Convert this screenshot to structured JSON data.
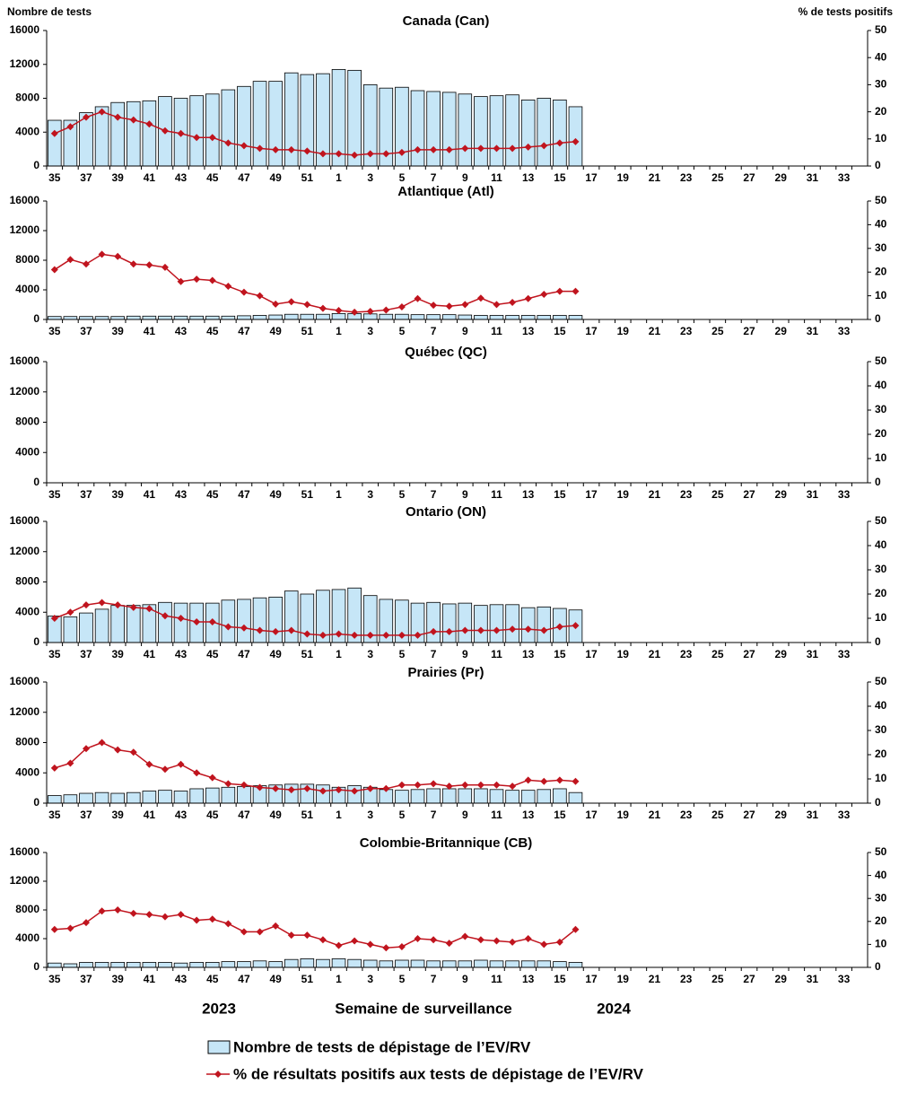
{
  "y_label": "Nombre de tests",
  "y2_label": "% de tests positifs",
  "x_label": "Semaine de surveillance",
  "years": [
    "2023",
    "2024"
  ],
  "chart_data": [
    {
      "type": "bar_line",
      "title": "Canada (Can)",
      "categories": [
        "35",
        null,
        "37",
        null,
        "39",
        null,
        "41",
        null,
        "43",
        null,
        "45",
        null,
        "47",
        null,
        "49",
        null,
        "51",
        null,
        "1",
        null,
        "3",
        null,
        "5",
        null,
        "7",
        null,
        "9",
        null,
        "11",
        null,
        "13",
        null,
        "15",
        null,
        "17",
        null,
        "19",
        null,
        "21",
        null,
        "23",
        null,
        "25",
        null,
        "27",
        null,
        "29",
        null,
        "31",
        null,
        "33",
        null
      ],
      "ylim": [
        0,
        16000
      ],
      "yticks": [
        0,
        4000,
        8000,
        12000,
        16000
      ],
      "y2lim": [
        0,
        50
      ],
      "y2ticks": [
        0,
        10,
        20,
        30,
        40,
        50
      ],
      "series": [
        {
          "name": "Nombre de tests de dépistage de l’EV/RV",
          "color": "#c6e6f7",
          "values": [
            5400,
            5400,
            6300,
            7000,
            7500,
            7600,
            7700,
            8200,
            8000,
            8300,
            8500,
            9000,
            9400,
            10000,
            10000,
            11000,
            10800,
            10900,
            11400,
            11300,
            9600,
            9200,
            9300,
            8900,
            8800,
            8700,
            8500,
            8200,
            8300,
            8400,
            7800,
            8000,
            7800,
            7000,
            null,
            null,
            null,
            null,
            null,
            null,
            null,
            null,
            null,
            null,
            null,
            null,
            null,
            null,
            null,
            null,
            null,
            null
          ]
        },
        {
          "name": "% de résultats positifs aux tests de dépistage de l’EV/RV",
          "color": "#c0141e",
          "axis": "y2",
          "values": [
            12,
            14.5,
            18,
            20,
            18,
            17,
            15.5,
            13,
            12,
            10.5,
            10.5,
            8.5,
            7.5,
            6.5,
            6,
            6,
            5.5,
            4.5,
            4.5,
            4,
            4.5,
            4.5,
            5,
            6,
            6,
            6,
            6.5,
            6.5,
            6.5,
            6.5,
            7,
            7.5,
            8.5,
            9,
            null,
            null,
            null,
            null,
            null,
            null,
            null,
            null,
            null,
            null,
            null,
            null,
            null,
            null,
            null,
            null,
            null,
            null
          ]
        }
      ]
    },
    {
      "type": "bar_line",
      "title": "Atlantique (Atl)",
      "categories": [
        "35",
        null,
        "37",
        null,
        "39",
        null,
        "41",
        null,
        "43",
        null,
        "45",
        null,
        "47",
        null,
        "49",
        null,
        "51",
        null,
        "1",
        null,
        "3",
        null,
        "5",
        null,
        "7",
        null,
        "9",
        null,
        "11",
        null,
        "13",
        null,
        "15",
        null,
        "17",
        null,
        "19",
        null,
        "21",
        null,
        "23",
        null,
        "25",
        null,
        "27",
        null,
        "29",
        null,
        "31",
        null,
        "33",
        null
      ],
      "ylim": [
        0,
        16000
      ],
      "yticks": [
        0,
        4000,
        8000,
        12000,
        16000
      ],
      "y2lim": [
        0,
        50
      ],
      "y2ticks": [
        0,
        10,
        20,
        30,
        40,
        50
      ],
      "series": [
        {
          "name": "Nombre de tests de dépistage de l’EV/RV",
          "color": "#c6e6f7",
          "values": [
            400,
            400,
            400,
            400,
            400,
            450,
            450,
            450,
            450,
            450,
            450,
            450,
            500,
            550,
            600,
            700,
            700,
            700,
            800,
            800,
            750,
            700,
            700,
            650,
            650,
            650,
            600,
            550,
            550,
            550,
            550,
            550,
            550,
            550,
            null,
            null,
            null,
            null,
            null,
            null,
            null,
            null,
            null,
            null,
            null,
            null,
            null,
            null,
            null,
            null,
            null,
            null
          ]
        },
        {
          "name": "% de résultats positifs aux tests de dépistage de l’EV/RV",
          "color": "#c0141e",
          "axis": "y2",
          "values": [
            21,
            25.3,
            23.4,
            27.5,
            26.6,
            23.4,
            23,
            22,
            16,
            17,
            16.5,
            14,
            11.5,
            10,
            6.5,
            7.5,
            6.3,
            4.7,
            3.8,
            3.1,
            3.4,
            4,
            5.3,
            8.8,
            6,
            5.6,
            6.3,
            9,
            6.3,
            7.2,
            8.8,
            10.6,
            11.9,
            11.9,
            null,
            null,
            null,
            null,
            null,
            null,
            null,
            null,
            null,
            null,
            null,
            null,
            null,
            null,
            null,
            null,
            null,
            null
          ]
        }
      ]
    },
    {
      "type": "bar_line",
      "title": "Québec (QC)",
      "categories": [
        "35",
        null,
        "37",
        null,
        "39",
        null,
        "41",
        null,
        "43",
        null,
        "45",
        null,
        "47",
        null,
        "49",
        null,
        "51",
        null,
        "1",
        null,
        "3",
        null,
        "5",
        null,
        "7",
        null,
        "9",
        null,
        "11",
        null,
        "13",
        null,
        "15",
        null,
        "17",
        null,
        "19",
        null,
        "21",
        null,
        "23",
        null,
        "25",
        null,
        "27",
        null,
        "29",
        null,
        "31",
        null,
        "33",
        null
      ],
      "ylim": [
        0,
        16000
      ],
      "yticks": [
        0,
        4000,
        8000,
        12000,
        16000
      ],
      "y2lim": [
        0,
        50
      ],
      "y2ticks": [
        0,
        10,
        20,
        30,
        40,
        50
      ],
      "series": []
    },
    {
      "type": "bar_line",
      "title": "Ontario (ON)",
      "categories": [
        "35",
        null,
        "37",
        null,
        "39",
        null,
        "41",
        null,
        "43",
        null,
        "45",
        null,
        "47",
        null,
        "49",
        null,
        "51",
        null,
        "1",
        null,
        "3",
        null,
        "5",
        null,
        "7",
        null,
        "9",
        null,
        "11",
        null,
        "13",
        null,
        "15",
        null,
        "17",
        null,
        "19",
        null,
        "21",
        null,
        "23",
        null,
        "25",
        null,
        "27",
        null,
        "29",
        null,
        "31",
        null,
        "33",
        null
      ],
      "ylim": [
        0,
        16000
      ],
      "yticks": [
        0,
        4000,
        8000,
        12000,
        16000
      ],
      "y2lim": [
        0,
        50
      ],
      "y2ticks": [
        0,
        10,
        20,
        30,
        40,
        50
      ],
      "series": [
        {
          "name": "Nombre de tests de dépistage de l’EV/RV",
          "color": "#c6e6f7",
          "values": [
            3500,
            3400,
            3900,
            4400,
            4900,
            4900,
            5000,
            5300,
            5200,
            5200,
            5200,
            5600,
            5700,
            5900,
            6000,
            6800,
            6400,
            6900,
            7000,
            7200,
            6200,
            5700,
            5600,
            5200,
            5300,
            5100,
            5200,
            4900,
            5000,
            5000,
            4600,
            4700,
            4500,
            4300,
            null,
            null,
            null,
            null,
            null,
            null,
            null,
            null,
            null,
            null,
            null,
            null,
            null,
            null,
            null,
            null,
            null,
            null
          ]
        },
        {
          "name": "% de résultats positifs aux tests de dépistage de l’EV/RV",
          "color": "#c0141e",
          "axis": "y2",
          "values": [
            10,
            12.5,
            15.5,
            16.5,
            15.5,
            14.5,
            14,
            11,
            10,
            8.5,
            8.5,
            6.5,
            6,
            5,
            4.5,
            5,
            3.5,
            3,
            3.5,
            3,
            3,
            3,
            3,
            3,
            4.5,
            4.5,
            5,
            5,
            5,
            5.5,
            5.5,
            5,
            6.5,
            7,
            null,
            null,
            null,
            null,
            null,
            null,
            null,
            null,
            null,
            null,
            null,
            null,
            null,
            null,
            null,
            null,
            null,
            null
          ]
        }
      ]
    },
    {
      "type": "bar_line",
      "title": "Prairies (Pr)",
      "categories": [
        "35",
        null,
        "37",
        null,
        "39",
        null,
        "41",
        null,
        "43",
        null,
        "45",
        null,
        "47",
        null,
        "49",
        null,
        "51",
        null,
        "1",
        null,
        "3",
        null,
        "5",
        null,
        "7",
        null,
        "9",
        null,
        "11",
        null,
        "13",
        null,
        "15",
        null,
        "17",
        null,
        "19",
        null,
        "21",
        null,
        "23",
        null,
        "25",
        null,
        "27",
        null,
        "29",
        null,
        "31",
        null,
        "33",
        null
      ],
      "ylim": [
        0,
        16000
      ],
      "yticks": [
        0,
        4000,
        8000,
        12000,
        16000
      ],
      "y2lim": [
        0,
        50
      ],
      "y2ticks": [
        0,
        10,
        20,
        30,
        40,
        50
      ],
      "series": [
        {
          "name": "Nombre de tests de dépistage de l’EV/RV",
          "color": "#c6e6f7",
          "values": [
            1000,
            1100,
            1300,
            1400,
            1300,
            1400,
            1600,
            1700,
            1600,
            1900,
            2000,
            2100,
            2200,
            2300,
            2400,
            2500,
            2500,
            2400,
            2100,
            2300,
            2100,
            1800,
            1700,
            1800,
            1900,
            1900,
            1900,
            1900,
            1800,
            1700,
            1700,
            1800,
            1900,
            1400,
            null,
            null,
            null,
            null,
            null,
            null,
            null,
            null,
            null,
            null,
            null,
            null,
            null,
            null,
            null,
            null,
            null,
            null
          ]
        },
        {
          "name": "% de résultats positifs aux tests de dépistage de l’EV/RV",
          "color": "#c0141e",
          "axis": "y2",
          "values": [
            14.5,
            16.5,
            22.5,
            25,
            22,
            21,
            16,
            14,
            16,
            12.5,
            10.5,
            8,
            7.5,
            6.5,
            6,
            5.5,
            6,
            5,
            5.5,
            5,
            6,
            6,
            7.5,
            7.5,
            8,
            7,
            7.5,
            7.5,
            7.5,
            7,
            9.5,
            9,
            9.5,
            9,
            null,
            null,
            null,
            null,
            null,
            null,
            null,
            null,
            null,
            null,
            null,
            null,
            null,
            null,
            null,
            null,
            null,
            null
          ]
        }
      ]
    },
    {
      "type": "bar_line",
      "title": "Colombie-Britannique (CB)",
      "categories": [
        "35",
        null,
        "37",
        null,
        "39",
        null,
        "41",
        null,
        "43",
        null,
        "45",
        null,
        "47",
        null,
        "49",
        null,
        "51",
        null,
        "1",
        null,
        "3",
        null,
        "5",
        null,
        "7",
        null,
        "9",
        null,
        "11",
        null,
        "13",
        null,
        "15",
        null,
        "17",
        null,
        "19",
        null,
        "21",
        null,
        "23",
        null,
        "25",
        null,
        "27",
        null,
        "29",
        null,
        "31",
        null,
        "33",
        null
      ],
      "ylim": [
        0,
        16000
      ],
      "yticks": [
        0,
        4000,
        8000,
        12000,
        16000
      ],
      "y2lim": [
        0,
        50
      ],
      "y2ticks": [
        0,
        10,
        20,
        30,
        40,
        50
      ],
      "series": [
        {
          "name": "Nombre de tests de dépistage de l’EV/RV",
          "color": "#c6e6f7",
          "values": [
            600,
            500,
            700,
            700,
            700,
            700,
            700,
            700,
            600,
            700,
            700,
            800,
            800,
            900,
            800,
            1100,
            1200,
            1100,
            1200,
            1100,
            1000,
            900,
            1000,
            1000,
            900,
            900,
            900,
            1000,
            900,
            900,
            900,
            900,
            800,
            700,
            null,
            null,
            null,
            null,
            null,
            null,
            null,
            null,
            null,
            null,
            null,
            null,
            null,
            null,
            null,
            null,
            null,
            null
          ]
        },
        {
          "name": "% de résultats positifs aux tests de dépistage de l’EV/RV",
          "color": "#c0141e",
          "axis": "y2",
          "values": [
            16.5,
            17,
            19.5,
            24.5,
            25,
            23.5,
            23,
            22,
            23,
            20.5,
            21,
            19,
            15.5,
            15.5,
            18,
            14,
            14,
            12,
            9.5,
            11.5,
            10,
            8.5,
            9,
            12.5,
            12,
            10.5,
            13.5,
            12,
            11.5,
            11,
            12.5,
            10,
            11,
            16.5,
            null,
            null,
            null,
            null,
            null,
            null,
            null,
            null,
            null,
            null,
            null,
            null,
            null,
            null,
            null,
            null,
            null,
            null
          ]
        }
      ]
    }
  ]
}
